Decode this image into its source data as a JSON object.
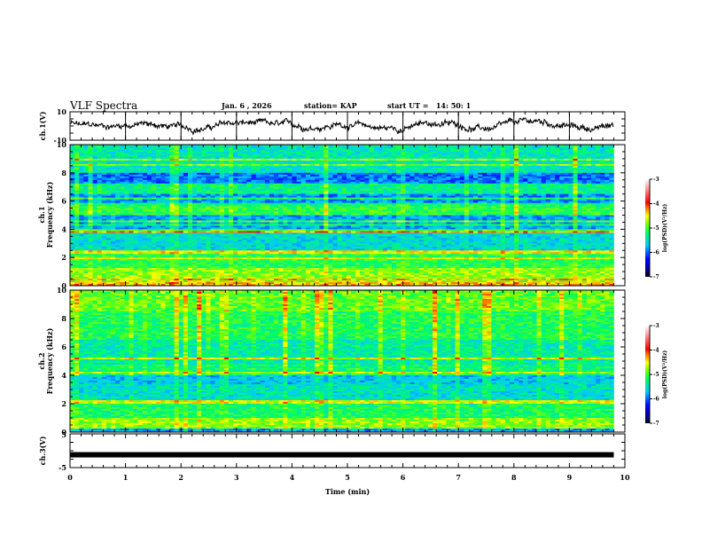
{
  "header": {
    "title": "VLF Spectra",
    "date": "Jan. 6 , 2026",
    "station": "station= KAP",
    "start": "start UT =   14: 50: 1"
  },
  "chart_data": [
    {
      "type": "line",
      "name": "ch1-waveform",
      "ylabel": "ch.1(V)",
      "ylim": [
        -10,
        10
      ],
      "yticks": [
        "10",
        "-10"
      ],
      "xlim": [
        0,
        10
      ],
      "data_end_min": 9.8,
      "description_level": "noisy waveform fluctuating roughly between -6 and 6 V"
    },
    {
      "type": "heatmap",
      "name": "ch1-spectrogram",
      "ylabel": "ch.1\nFrequency (kHz)",
      "ylabel_line1": "ch.1",
      "ylabel_line2": "Frequency (kHz)",
      "ylim": [
        0,
        10
      ],
      "yticks": [
        "0",
        "2",
        "4",
        "6",
        "8",
        "10"
      ],
      "xlim": [
        0,
        10
      ],
      "data_end_min": 9.8,
      "colorbar": {
        "label": "log(PSD)(V²/Hz)",
        "range": [
          -7,
          -3
        ],
        "ticks": [
          "-3",
          "-4",
          "-5",
          "-6",
          "-7"
        ]
      }
    },
    {
      "type": "heatmap",
      "name": "ch2-spectrogram",
      "ylabel_line1": "ch.2",
      "ylabel_line2": "Frequency (kHz)",
      "ylim": [
        0,
        10
      ],
      "yticks": [
        "0",
        "2",
        "4",
        "6",
        "8",
        "10"
      ],
      "xlim": [
        0,
        10
      ],
      "data_end_min": 9.8,
      "colorbar": {
        "label": "log(PSD)(V²/Hz)",
        "range": [
          -7,
          -3
        ],
        "ticks": [
          "-3",
          "-4",
          "-5",
          "-6",
          "-7"
        ]
      }
    },
    {
      "type": "line",
      "name": "ch3-waveform",
      "ylabel": "ch.3(V)",
      "ylim": [
        -5,
        5
      ],
      "yticks": [
        "5",
        "-5"
      ],
      "level": -1.2,
      "xlim": [
        0,
        10
      ],
      "data_end_min": 9.8
    }
  ],
  "xaxis": {
    "label": "Time (min)",
    "ticks": [
      "0",
      "1",
      "2",
      "3",
      "4",
      "5",
      "6",
      "7",
      "8",
      "9",
      "10"
    ]
  }
}
